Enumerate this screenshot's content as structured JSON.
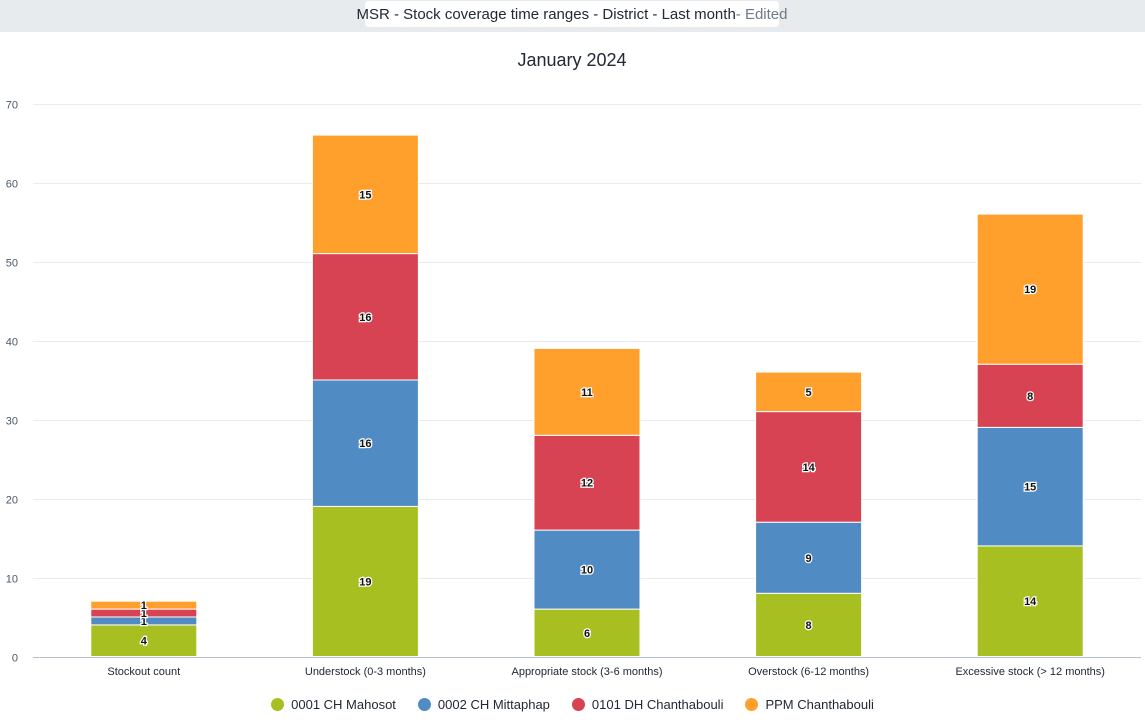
{
  "header": {
    "title": "MSR - Stock coverage time ranges - District - Last month",
    "edited_suffix": " - Edited"
  },
  "chart_data": {
    "type": "bar",
    "stacked": true,
    "title": "January 2024",
    "xlabel": "",
    "ylabel": "",
    "ylim": [
      0,
      70
    ],
    "yticks": [
      0,
      10,
      20,
      30,
      40,
      50,
      60,
      70
    ],
    "grid": true,
    "legend_position": "bottom",
    "categories": [
      "Stockout count",
      "Understock (0-3 months)",
      "Appropriate stock (3-6 months)",
      "Overstock (6-12 months)",
      "Excessive stock (> 12 months)"
    ],
    "series": [
      {
        "name": "0001 CH Mahosot",
        "color": "#a8bf22",
        "values": [
          4,
          19,
          6,
          8,
          14
        ]
      },
      {
        "name": "0002 CH Mittaphap",
        "color": "#508bc3",
        "values": [
          1,
          16,
          10,
          9,
          15
        ]
      },
      {
        "name": "0101 DH Chanthabouli",
        "color": "#d84353",
        "values": [
          1,
          16,
          12,
          14,
          8
        ]
      },
      {
        "name": "PPM Chanthabouli",
        "color": "#ffa02d",
        "values": [
          1,
          15,
          11,
          5,
          19
        ]
      }
    ]
  }
}
